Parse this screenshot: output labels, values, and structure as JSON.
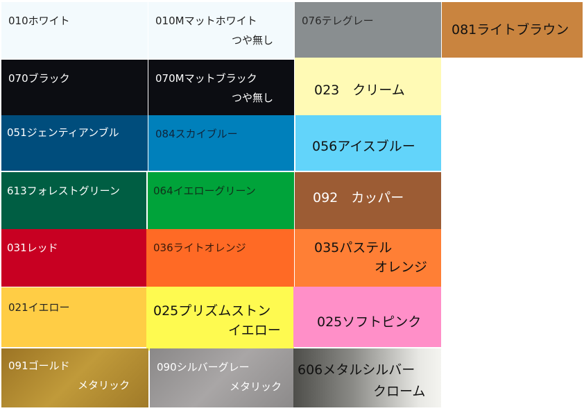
{
  "swatches": [
    {
      "line1": "010ホワイト",
      "line2": "",
      "bg": "#f3fafd",
      "fg": "#222222"
    },
    {
      "line1": "010Mマットホワイト",
      "line2": "つや無し",
      "bg": "#f3fafd",
      "fg": "#222222"
    },
    {
      "line1": "076テレグレー",
      "line2": "",
      "bg": "#898e90",
      "fg": "#2a2a2a"
    },
    {
      "line1": "081ライトブラウン",
      "line2": "",
      "bg": "#c9843f",
      "fg": "#111111"
    },
    {
      "line1": "070ブラック",
      "line2": "",
      "bg": "#0c0d12",
      "fg": "#ffffff"
    },
    {
      "line1": "070Mマットブラック",
      "line2": "つや無し",
      "bg": "#0c0d12",
      "fg": "#ffffff"
    },
    {
      "line1": "023　クリーム",
      "line2": "",
      "bg": "#fffab5",
      "fg": "#111111"
    },
    {
      "line1": "051ジェンティアンブル",
      "line2": "",
      "bg": "#004d7c",
      "fg": "#ffffff"
    },
    {
      "line1": "084スカイブルー",
      "line2": "",
      "bg": "#0080bb",
      "fg": "#10243a"
    },
    {
      "line1": "056アイスブルー",
      "line2": "",
      "bg": "#62d4fa",
      "fg": "#111111"
    },
    {
      "line1": "613フォレストグリーン",
      "line2": "",
      "bg": "#005e43",
      "fg": "#ffffff"
    },
    {
      "line1": "064イエローグリーン",
      "line2": "",
      "bg": "#00a33a",
      "fg": "#10301a"
    },
    {
      "line1": "092　カッパー",
      "line2": "",
      "bg": "#9c5c34",
      "fg": "#ffffff"
    },
    {
      "line1": "031レッド",
      "line2": "",
      "bg": "#c80022",
      "fg": "#ffffff"
    },
    {
      "line1": "036ライトオレンジ",
      "line2": "",
      "bg": "#ff6a25",
      "fg": "#3a1a0a"
    },
    {
      "line1": "035パステル",
      "line2": "オレンジ",
      "bg": "#ff7f35",
      "fg": "#111111"
    },
    {
      "line1": "021イエロー",
      "line2": "",
      "bg": "#ffcd45",
      "fg": "#222222"
    },
    {
      "line1": "025プリズムストン",
      "line2": "イエロー",
      "bg": "#fefa50",
      "fg": "#111111"
    },
    {
      "line1": "025ソフトピンク",
      "line2": "",
      "bg": "#ff8fc8",
      "fg": "#111111"
    },
    {
      "line1": "091ゴールド",
      "line2": "メタリック",
      "bg": "linear-gradient(135deg,#9c7424,#c09a3a 50%,#a07a28)",
      "fg": "#ffffff"
    },
    {
      "line1": "090シルバーグレー",
      "line2": "メタリック",
      "bg": "linear-gradient(135deg,#8a8888,#a9a6a6 50%,#8c8a8a)",
      "fg": "#ffffff"
    },
    {
      "line1": "606メタルシルバー",
      "line2": "クローム",
      "bg": "linear-gradient(90deg,#4e4e4a,#8a8a86 40%,#e8e8e4 85%,#f4f4f0)",
      "fg": "#111111"
    }
  ]
}
